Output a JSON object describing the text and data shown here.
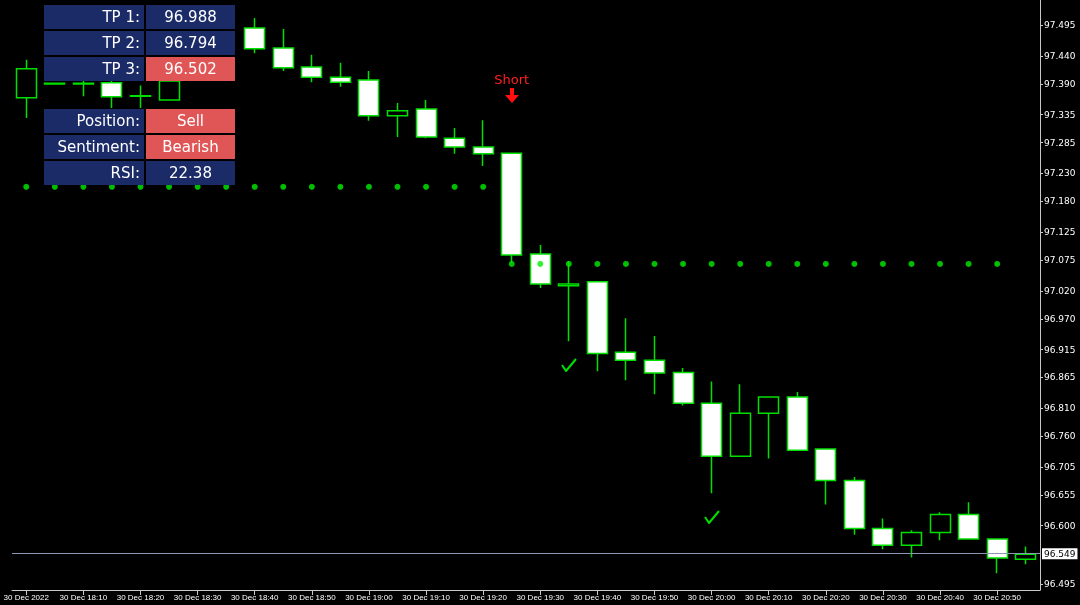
{
  "chart_data": [
    {
      "type": "candlestick",
      "categories": [
        "30 Dec 2022",
        null,
        "30 Dec 18:10",
        null,
        "30 Dec 18:20",
        null,
        "30 Dec 18:30",
        null,
        "30 Dec 18:40",
        null,
        "30 Dec 18:50",
        null,
        "30 Dec 19:00",
        null,
        "30 Dec 19:10",
        null,
        "30 Dec 19:20",
        null,
        "30 Dec 19:30",
        null,
        "30 Dec 19:40",
        null,
        "30 Dec 19:50",
        null,
        "30 Dec 20:00",
        null,
        "30 Dec 20:10",
        null,
        "30 Dec 20:20",
        null,
        "30 Dec 20:30",
        null,
        "30 Dec 20:40",
        null,
        "30 Dec 20:50",
        null
      ],
      "color": "#00e000",
      "ohlc": [
        [
          97.365,
          97.433,
          97.329,
          97.417
        ],
        [
          97.391,
          97.392,
          97.389,
          97.39
        ],
        [
          97.391,
          97.395,
          97.368,
          97.39
        ],
        [
          97.392,
          97.395,
          97.347,
          97.367
        ],
        [
          97.369,
          97.387,
          97.347,
          97.368
        ],
        [
          97.361,
          97.398,
          97.36,
          97.395
        ],
        null,
        null,
        [
          97.49,
          97.508,
          97.445,
          97.453
        ],
        [
          97.454,
          97.488,
          97.413,
          97.419
        ],
        [
          97.42,
          97.442,
          97.393,
          97.402
        ],
        [
          97.402,
          97.428,
          97.385,
          97.393
        ],
        [
          97.397,
          97.413,
          97.324,
          97.333
        ],
        [
          97.333,
          97.356,
          97.295,
          97.342
        ],
        [
          97.345,
          97.361,
          97.293,
          97.295
        ],
        [
          97.293,
          97.311,
          97.265,
          97.277
        ],
        [
          97.277,
          97.325,
          97.243,
          97.265
        ],
        [
          97.266,
          97.267,
          97.07,
          97.084
        ],
        [
          97.086,
          97.102,
          97.025,
          97.032
        ],
        [
          97.029,
          97.073,
          96.93,
          97.032
        ],
        [
          97.036,
          97.036,
          96.876,
          96.908
        ],
        [
          96.91,
          96.971,
          96.86,
          96.896
        ],
        [
          96.896,
          96.939,
          96.835,
          96.873
        ],
        [
          96.874,
          96.882,
          96.815,
          96.819
        ],
        [
          96.819,
          96.858,
          96.658,
          96.724
        ],
        [
          96.724,
          96.853,
          96.724,
          96.801
        ],
        [
          96.801,
          96.83,
          96.72,
          96.83
        ],
        [
          96.83,
          96.839,
          96.735,
          96.735
        ],
        [
          96.737,
          96.737,
          96.638,
          96.681
        ],
        [
          96.681,
          96.687,
          96.584,
          96.595
        ],
        [
          96.595,
          96.613,
          96.558,
          96.565
        ],
        [
          96.565,
          96.592,
          96.543,
          96.588
        ],
        [
          96.588,
          96.624,
          96.574,
          96.62
        ],
        [
          96.62,
          96.642,
          96.576,
          96.576
        ],
        [
          96.576,
          96.576,
          96.515,
          96.542
        ],
        [
          96.54,
          96.563,
          96.531,
          96.549
        ]
      ],
      "series": [
        {
          "type": "scatter",
          "color": "#00ee00",
          "values": [
            97.206,
            97.206,
            97.206,
            97.206,
            97.206,
            97.206,
            97.206,
            97.206,
            97.206,
            97.206,
            97.206,
            97.206,
            97.206,
            97.206,
            97.206,
            97.206,
            97.206,
            97.068,
            97.068,
            97.068,
            97.068,
            97.068,
            97.068,
            97.068,
            97.068,
            97.068,
            97.068,
            97.068,
            97.068,
            97.068,
            97.068,
            97.068,
            97.068,
            97.068,
            97.068,
            null
          ]
        }
      ],
      "ylim": [
        96.485,
        97.54
      ],
      "yticks": [
        {
          "value": 97.495,
          "label": "97.495"
        },
        {
          "value": 97.44,
          "label": "97.440"
        },
        {
          "value": 97.39,
          "label": "97.390"
        },
        {
          "value": 97.335,
          "label": "97.335"
        },
        {
          "value": 97.285,
          "label": "97.285"
        },
        {
          "value": 97.23,
          "label": "97.230"
        },
        {
          "value": 97.18,
          "label": "97.180"
        },
        {
          "value": 97.125,
          "label": "97.125"
        },
        {
          "value": 97.075,
          "label": "97.075"
        },
        {
          "value": 97.02,
          "label": "97.020"
        },
        {
          "value": 96.97,
          "label": "96.970"
        },
        {
          "value": 96.915,
          "label": "96.915"
        },
        {
          "value": 96.865,
          "label": "96.865"
        },
        {
          "value": 96.81,
          "label": "96.810"
        },
        {
          "value": 96.76,
          "label": "96.760"
        },
        {
          "value": 96.705,
          "label": "96.705"
        },
        {
          "value": 96.655,
          "label": "96.655"
        },
        {
          "value": 96.6,
          "label": "96.600"
        },
        {
          "value": 96.495,
          "label": "96.495"
        }
      ],
      "ref_lines": [
        {
          "axis": "y",
          "value": 96.549,
          "label": "96.549",
          "color": "#8898b0"
        }
      ],
      "annotations": [
        "Short"
      ],
      "grid": false
    },
    {
      "type": "other",
      "y_categories": [
        "TP 1:",
        "TP 2:",
        "TP 3:",
        null,
        "Position:",
        "Sentiment:",
        "RSI:"
      ],
      "cell_labels": [
        [
          "96.988"
        ],
        [
          "96.794"
        ],
        [
          "96.502"
        ],
        null,
        [
          "Sell"
        ],
        [
          "Bearish"
        ],
        [
          "22.38"
        ]
      ],
      "color": "#1b2b68",
      "colors": [
        "#1b2b68",
        "#1b2b68",
        "#e05656",
        null,
        "#e05656",
        "#e05656",
        "#1b2b68"
      ]
    }
  ]
}
